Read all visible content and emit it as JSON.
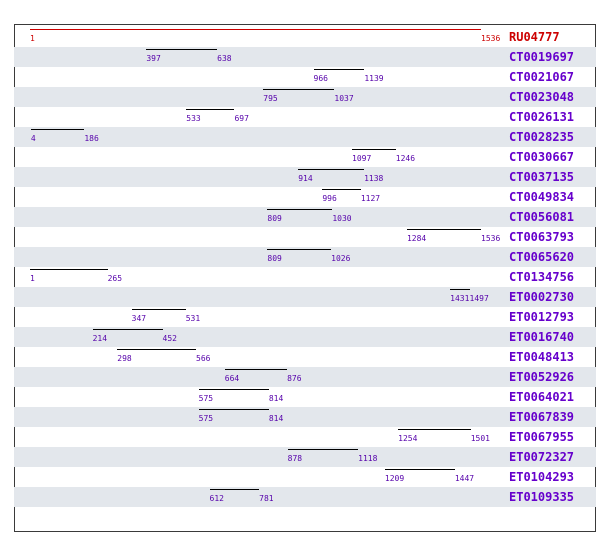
{
  "colors": {
    "band": "#e3e7ec",
    "reference": "#cc0000",
    "sequence_line": "#000000",
    "sequence_number": "#5500aa",
    "sequence_label": "#6600cc"
  },
  "reference": {
    "id": "RU04777",
    "start": 1,
    "end": 1536
  },
  "matches": [
    {
      "id": "CT0019697",
      "start": 397,
      "end": 638
    },
    {
      "id": "CT0021067",
      "start": 966,
      "end": 1139
    },
    {
      "id": "CT0023048",
      "start": 795,
      "end": 1037
    },
    {
      "id": "CT0026131",
      "start": 533,
      "end": 697
    },
    {
      "id": "CT0028235",
      "start": 4,
      "end": 186
    },
    {
      "id": "CT0030667",
      "start": 1097,
      "end": 1246
    },
    {
      "id": "CT0037135",
      "start": 914,
      "end": 1138
    },
    {
      "id": "CT0049834",
      "start": 996,
      "end": 1127
    },
    {
      "id": "CT0056081",
      "start": 809,
      "end": 1030
    },
    {
      "id": "CT0063793",
      "start": 1284,
      "end": 1536
    },
    {
      "id": "CT0065620",
      "start": 809,
      "end": 1026
    },
    {
      "id": "CT0134756",
      "start": 1,
      "end": 265
    },
    {
      "id": "ET0002730",
      "start": 1431,
      "end": 1497
    },
    {
      "id": "ET0012793",
      "start": 347,
      "end": 531
    },
    {
      "id": "ET0016740",
      "start": 214,
      "end": 452
    },
    {
      "id": "ET0048413",
      "start": 298,
      "end": 566
    },
    {
      "id": "ET0052926",
      "start": 664,
      "end": 876
    },
    {
      "id": "ET0064021",
      "start": 575,
      "end": 814
    },
    {
      "id": "ET0067839",
      "start": 575,
      "end": 814
    },
    {
      "id": "ET0067955",
      "start": 1254,
      "end": 1501
    },
    {
      "id": "ET0072327",
      "start": 878,
      "end": 1118
    },
    {
      "id": "ET0104293",
      "start": 1209,
      "end": 1447
    },
    {
      "id": "ET0109335",
      "start": 612,
      "end": 781
    }
  ]
}
